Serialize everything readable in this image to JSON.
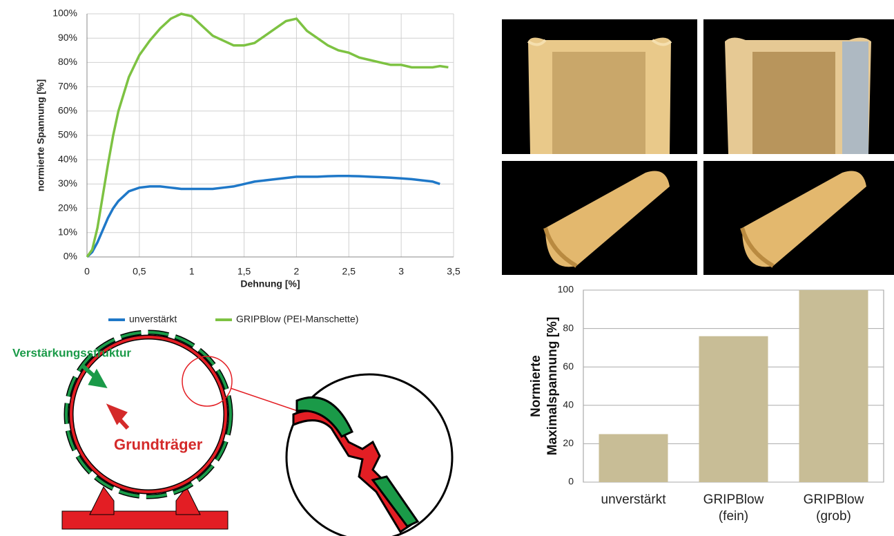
{
  "chart_data": [
    {
      "type": "line",
      "x_label": "Dehnung [%]",
      "y_label": "normierte Spannung [%]",
      "x": [
        0,
        0.05,
        0.1,
        0.15,
        0.2,
        0.25,
        0.3,
        0.4,
        0.5,
        0.6,
        0.7,
        0.8,
        0.9,
        1.0,
        1.1,
        1.2,
        1.3,
        1.4,
        1.5,
        1.6,
        1.7,
        1.8,
        1.9,
        2.0,
        2.1,
        2.2,
        2.3,
        2.4,
        2.5,
        2.6,
        2.7,
        2.8,
        2.9,
        3.0,
        3.1,
        3.2,
        3.3,
        3.37,
        3.45
      ],
      "series": [
        {
          "name": "unverstärkt",
          "color": "#1f78c8",
          "values": [
            0,
            2,
            6,
            11,
            16,
            20,
            23,
            27,
            28.5,
            29,
            29,
            28.5,
            28,
            28,
            28,
            28,
            28.5,
            29,
            30,
            31,
            31.5,
            32,
            32.5,
            33,
            33,
            33,
            33.2,
            33.3,
            33.3,
            33.2,
            33,
            32.8,
            32.6,
            32.3,
            32,
            31.5,
            31,
            30,
            null
          ]
        },
        {
          "name": "GRIPBlow (PEI-Manschette)",
          "color": "#7dc242",
          "values": [
            0,
            3,
            12,
            25,
            38,
            50,
            60,
            74,
            83,
            89,
            94,
            98,
            100,
            99,
            95,
            91,
            89,
            87,
            87,
            88,
            91,
            94,
            97,
            98,
            93,
            90,
            87,
            85,
            84,
            82,
            81,
            80,
            79,
            79,
            78,
            78,
            78,
            78.5,
            78
          ]
        }
      ],
      "xlim": [
        0,
        3.5
      ],
      "xticks": [
        0,
        {
          "value": 0.5,
          "label": "0,5"
        },
        1,
        {
          "value": 1.5,
          "label": "1,5"
        },
        2,
        {
          "value": 2.5,
          "label": "2,5"
        },
        3,
        {
          "value": 3.5,
          "label": "3,5"
        }
      ],
      "ylim": [
        0,
        100
      ],
      "yticks": [
        {
          "value": 0,
          "label": "0%"
        },
        {
          "value": 10,
          "label": "10%"
        },
        {
          "value": 20,
          "label": "20%"
        },
        {
          "value": 30,
          "label": "30%"
        },
        {
          "value": 40,
          "label": "40%"
        },
        {
          "value": 50,
          "label": "50%"
        },
        {
          "value": 60,
          "label": "60%"
        },
        {
          "value": 70,
          "label": "70%"
        },
        {
          "value": 80,
          "label": "80%"
        },
        {
          "value": 90,
          "label": "90%"
        },
        {
          "value": 100,
          "label": "100%"
        }
      ],
      "grid": true,
      "legend": "bottom"
    },
    {
      "type": "bar",
      "y_label": "Normierte Maximalspannung [%]",
      "categories": [
        "unverstärkt",
        "GRIPBlow (fein)",
        "GRIPBlow (grob)"
      ],
      "values": [
        25,
        76,
        100
      ],
      "color": "#c8bd96",
      "ylim": [
        0,
        100
      ],
      "yticks": [
        0,
        20,
        40,
        60,
        80,
        100
      ],
      "grid": true
    }
  ],
  "diagram": {
    "labels": [
      "Verstärkungsstruktur",
      "Grundträger"
    ]
  }
}
